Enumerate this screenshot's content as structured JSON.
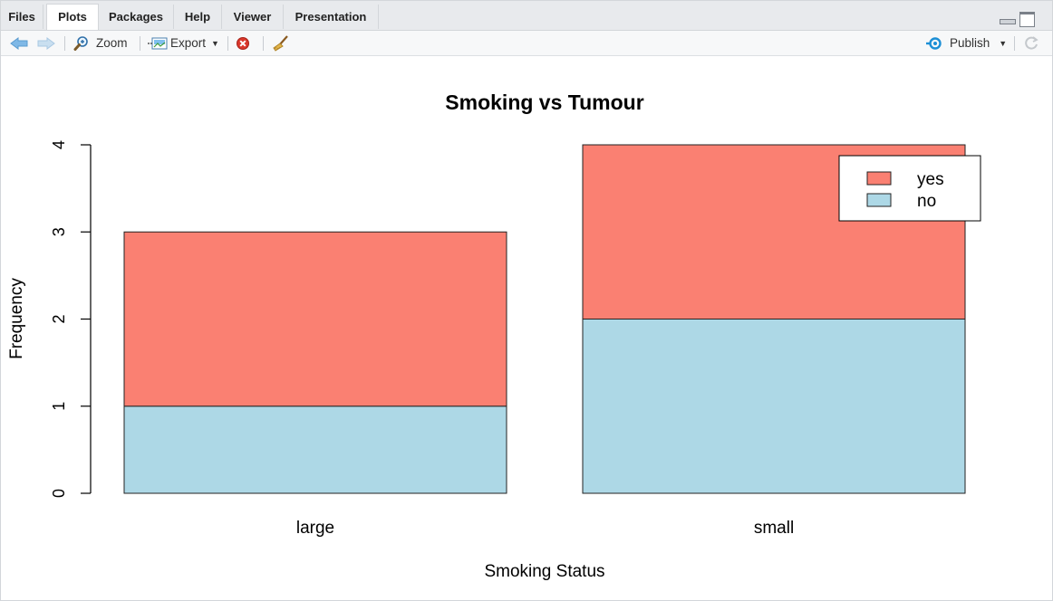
{
  "tabs": [
    {
      "label": "Files",
      "active": false
    },
    {
      "label": "Plots",
      "active": true
    },
    {
      "label": "Packages",
      "active": false
    },
    {
      "label": "Help",
      "active": false
    },
    {
      "label": "Viewer",
      "active": false
    },
    {
      "label": "Presentation",
      "active": false
    }
  ],
  "toolbar": {
    "zoom_label": "Zoom",
    "export_label": "Export",
    "publish_label": "Publish",
    "icons": [
      "back-arrow-icon",
      "forward-arrow-icon",
      "zoom-icon",
      "export-icon",
      "remove-plot-icon",
      "broom-icon",
      "publish-icon",
      "refresh-icon"
    ]
  },
  "colors": {
    "yes": "#fa8072",
    "no": "#add8e6",
    "accent": "#1c8fd6"
  },
  "chart_data": {
    "type": "bar",
    "stacked": true,
    "title": "Smoking vs Tumour",
    "xlabel": "Smoking Status",
    "ylabel": "Frequency",
    "categories": [
      "large",
      "small"
    ],
    "series": [
      {
        "name": "no",
        "values": [
          1,
          2
        ],
        "color": "#add8e6"
      },
      {
        "name": "yes",
        "values": [
          2,
          2
        ],
        "color": "#fa8072"
      }
    ],
    "yticks": [
      "0",
      "1",
      "2",
      "3",
      "4"
    ],
    "ylim": [
      0,
      4
    ],
    "legend": {
      "position": "top-right",
      "entries": [
        "yes",
        "no"
      ]
    },
    "grid": false
  }
}
